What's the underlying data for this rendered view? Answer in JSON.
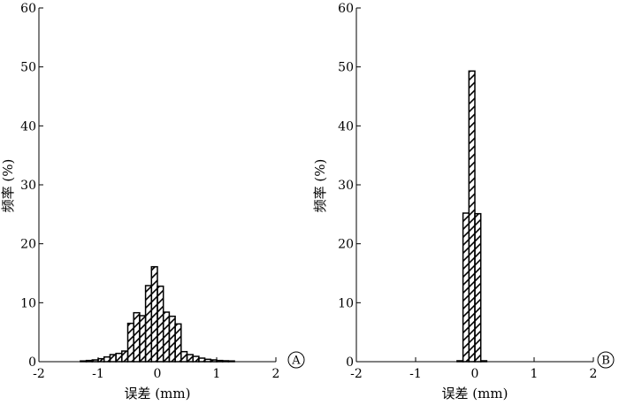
{
  "chart_data": [
    {
      "type": "bar",
      "panel_label": "A",
      "xlabel": "误差 (mm)",
      "ylabel": "频率 (%)",
      "xlim": [
        -2,
        2
      ],
      "ylim": [
        0,
        60
      ],
      "xticks": [
        -2,
        -1,
        0,
        1,
        2
      ],
      "yticks": [
        0,
        10,
        20,
        30,
        40,
        50,
        60
      ],
      "bin_width": 0.1,
      "bins": [
        {
          "x": -1.25,
          "y": 0.1
        },
        {
          "x": -1.15,
          "y": 0.2
        },
        {
          "x": -1.05,
          "y": 0.3
        },
        {
          "x": -0.95,
          "y": 0.5
        },
        {
          "x": -0.85,
          "y": 0.8
        },
        {
          "x": -0.75,
          "y": 1.2
        },
        {
          "x": -0.65,
          "y": 1.4
        },
        {
          "x": -0.55,
          "y": 1.8
        },
        {
          "x": -0.45,
          "y": 6.5
        },
        {
          "x": -0.35,
          "y": 8.3
        },
        {
          "x": -0.25,
          "y": 7.8
        },
        {
          "x": -0.15,
          "y": 12.9
        },
        {
          "x": -0.05,
          "y": 16.1
        },
        {
          "x": 0.05,
          "y": 12.8
        },
        {
          "x": 0.15,
          "y": 8.4
        },
        {
          "x": 0.25,
          "y": 7.7
        },
        {
          "x": 0.35,
          "y": 6.4
        },
        {
          "x": 0.45,
          "y": 1.7
        },
        {
          "x": 0.55,
          "y": 1.2
        },
        {
          "x": 0.65,
          "y": 0.9
        },
        {
          "x": 0.75,
          "y": 0.6
        },
        {
          "x": 0.85,
          "y": 0.4
        },
        {
          "x": 0.95,
          "y": 0.3
        },
        {
          "x": 1.05,
          "y": 0.2
        },
        {
          "x": 1.15,
          "y": 0.15
        },
        {
          "x": 1.25,
          "y": 0.1
        }
      ]
    },
    {
      "type": "bar",
      "panel_label": "B",
      "xlabel": "误差 (mm)",
      "ylabel": "频率 (%)",
      "xlim": [
        -2,
        2
      ],
      "ylim": [
        0,
        60
      ],
      "xticks": [
        -2,
        -1,
        0,
        1,
        2
      ],
      "yticks": [
        0,
        10,
        20,
        30,
        40,
        50,
        60
      ],
      "bin_width": 0.1,
      "bins": [
        {
          "x": -0.25,
          "y": 0.15
        },
        {
          "x": -0.15,
          "y": 25.2
        },
        {
          "x": -0.05,
          "y": 49.3
        },
        {
          "x": 0.05,
          "y": 25.1
        },
        {
          "x": 0.15,
          "y": 0.15
        }
      ]
    }
  ]
}
